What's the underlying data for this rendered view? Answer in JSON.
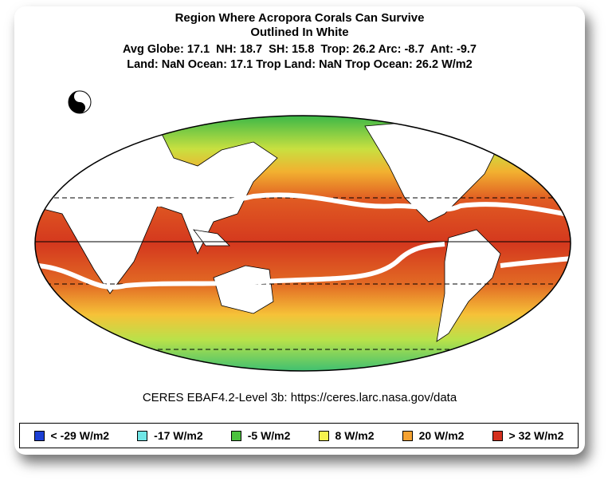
{
  "title": [
    "Region Where Acropora Corals Can Survive",
    "Outlined In White"
  ],
  "stats": [
    "Avg Globe: 17.1  NH: 18.7  SH: 15.8  Trop: 26.2 Arc: -8.7  Ant: -9.7",
    "Land: NaN Ocean: 17.1 Trop Land: NaN Trop Ocean: 26.2 W/m2"
  ],
  "source": "CERES EBAF4.2-Level 3b: https://ceres.larc.nasa.gov/data",
  "legend": [
    {
      "label": "< -29 W/m2",
      "color": "#1c3fd4"
    },
    {
      "label": "-17 W/m2",
      "color": "#70e6e6"
    },
    {
      "label": "-5 W/m2",
      "color": "#4cc23e"
    },
    {
      "label": "8 W/m2",
      "color": "#f6f34e"
    },
    {
      "label": "20 W/m2",
      "color": "#f5a232"
    },
    {
      "label": "> 32 W/m2",
      "color": "#d4301e"
    }
  ]
}
